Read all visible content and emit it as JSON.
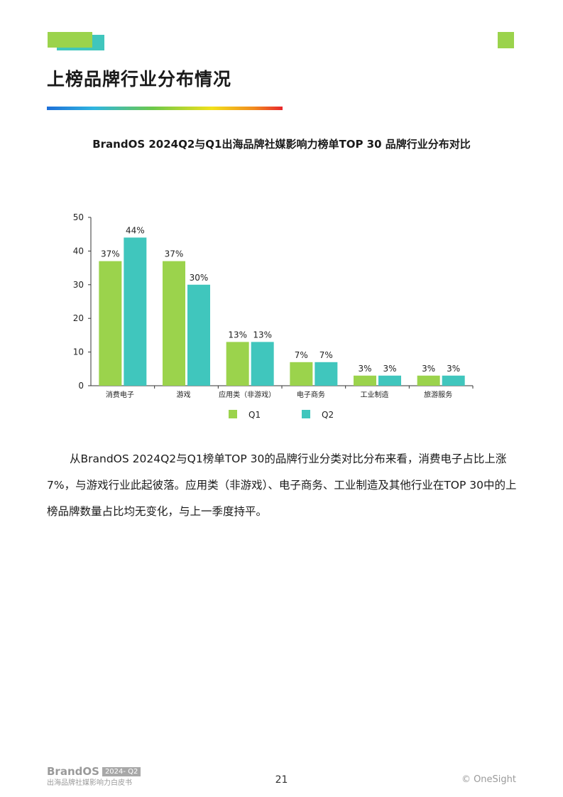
{
  "header": {
    "title": "上榜品牌行业分布情况"
  },
  "chart_data": {
    "type": "bar",
    "title": "BrandOS 2024Q2与Q1出海品牌社媒影响力榜单TOP 30 品牌行业分布对比",
    "categories": [
      "消费电子",
      "游戏",
      "应用类（非游戏）",
      "电子商务",
      "工业制造",
      "旅游服务"
    ],
    "series": [
      {
        "name": "Q1",
        "values": [
          37,
          37,
          13,
          7,
          3,
          3
        ],
        "labels": [
          "37%",
          "37%",
          "13%",
          "7%",
          "3%",
          "3%"
        ],
        "color": "#9bd34c"
      },
      {
        "name": "Q2",
        "values": [
          44,
          30,
          13,
          7,
          3,
          3
        ],
        "labels": [
          "44%",
          "30%",
          "13%",
          "7%",
          "3%",
          "3%"
        ],
        "color": "#40c6bd"
      }
    ],
    "yticks": [
      "0",
      "10",
      "20",
      "30",
      "40",
      "50"
    ],
    "ylim": [
      0,
      50
    ],
    "grid": false,
    "legend_position": "bottom"
  },
  "body": {
    "paragraph": "从BrandOS 2024Q2与Q1榜单TOP 30的品牌行业分类对比分布来看，消费电子占比上涨7%，与游戏行业此起彼落。应用类（非游戏）、电子商务、工业制造及其他行业在TOP 30中的上榜品牌数量占比均无变化，与上一季度持平。"
  },
  "footer": {
    "brand": "BrandOS",
    "tag": "2024- Q2",
    "subtitle": "出海品牌社媒影响力白皮书",
    "page_number": "21",
    "copyright": "© OneSight"
  },
  "colors": {
    "accent_green": "#9bd34c",
    "accent_teal": "#40c6bd"
  }
}
